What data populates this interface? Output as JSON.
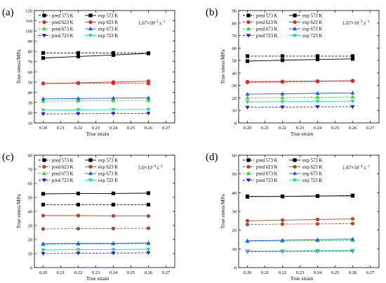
{
  "chart_data": [
    {
      "panel_label": "(a)",
      "type": "line",
      "rate_prefix": "1.67×10",
      "rate_exp": "−2",
      "rate_suffix": " s",
      "rate_suffix_exp": "−1",
      "xlabel": "True strain",
      "ylabel": "True stress/MPa",
      "xlim": [
        0.195,
        0.275
      ],
      "ylim": [
        10,
        120
      ],
      "xticks": [
        "0.20",
        "0.21",
        "0.22",
        "0.23",
        "0.24",
        "0.25",
        "0.26",
        "0.27"
      ],
      "yticks": [
        "10",
        "20",
        "30",
        "40",
        "50",
        "60",
        "70",
        "80",
        "90",
        "100",
        "110",
        "120"
      ],
      "x": [
        0.2,
        0.22,
        0.24,
        0.26
      ],
      "series": [
        {
          "name": "pred 573 K",
          "color": "#000000",
          "marker": "square",
          "dashed": true,
          "values": [
            78.5,
            78.5,
            78.5,
            78.2
          ]
        },
        {
          "name": "exp 573 K",
          "color": "#000000",
          "marker": "square",
          "dashed": false,
          "values": [
            73.5,
            75.0,
            76.5,
            78.0
          ]
        },
        {
          "name": "pred 623 K",
          "color": "#e8261e",
          "marker": "circle",
          "dashed": true,
          "values": [
            48.8,
            48.8,
            48.8,
            48.5
          ]
        },
        {
          "name": "exp 623 K",
          "color": "#e8261e",
          "marker": "circle",
          "dashed": false,
          "values": [
            48.5,
            49.2,
            50.0,
            50.8
          ]
        },
        {
          "name": "pred 673 K",
          "color": "#3ad432",
          "marker": "triangle-up",
          "dashed": true,
          "values": [
            31.2,
            31.5,
            31.8,
            32.0
          ]
        },
        {
          "name": "exp 673 K",
          "color": "#1f5ddf",
          "marker": "triangle-up",
          "dashed": false,
          "values": [
            33.5,
            33.8,
            34.2,
            34.5
          ]
        },
        {
          "name": "pred 723 K",
          "color": "#1f1fd8",
          "marker": "triangle-down",
          "dashed": true,
          "values": [
            18.8,
            19.0,
            19.2,
            19.3
          ]
        },
        {
          "name": "exp 723 K",
          "color": "#2fd39a",
          "marker": "triangle-down",
          "dashed": false,
          "values": [
            22.5,
            22.8,
            23.0,
            23.2
          ]
        }
      ]
    },
    {
      "panel_label": "(b)",
      "type": "line",
      "rate_prefix": "1.67×10",
      "rate_exp": "−3",
      "rate_suffix": " s",
      "rate_suffix_exp": "−1",
      "xlabel": "True strain",
      "ylabel": "True stress/MPa",
      "xlim": [
        0.195,
        0.275
      ],
      "ylim": [
        0,
        90
      ],
      "xticks": [
        "0.20",
        "0.21",
        "0.22",
        "0.23",
        "0.24",
        "0.25",
        "0.26",
        "0.27"
      ],
      "yticks": [
        "0",
        "10",
        "20",
        "30",
        "40",
        "50",
        "60",
        "70",
        "80",
        "90"
      ],
      "x": [
        0.2,
        0.22,
        0.24,
        0.26
      ],
      "series": [
        {
          "name": "pred 573 K",
          "color": "#000000",
          "marker": "square",
          "dashed": true,
          "values": [
            53.5,
            53.5,
            53.5,
            53.5
          ]
        },
        {
          "name": "exp 573 K",
          "color": "#000000",
          "marker": "square",
          "dashed": false,
          "values": [
            49.5,
            50.2,
            50.8,
            51.3
          ]
        },
        {
          "name": "pred 623 K",
          "color": "#e8261e",
          "marker": "circle",
          "dashed": true,
          "values": [
            32.5,
            32.8,
            33.2,
            33.5
          ]
        },
        {
          "name": "exp 623 K",
          "color": "#e8261e",
          "marker": "circle",
          "dashed": false,
          "values": [
            33.0,
            33.2,
            33.5,
            33.8
          ]
        },
        {
          "name": "pred 673 K",
          "color": "#3ad432",
          "marker": "triangle-up",
          "dashed": true,
          "values": [
            20.0,
            20.3,
            20.5,
            20.8
          ]
        },
        {
          "name": "exp 673 K",
          "color": "#1f5ddf",
          "marker": "triangle-up",
          "dashed": false,
          "values": [
            23.0,
            23.3,
            23.7,
            24.0
          ]
        },
        {
          "name": "pred 723 K",
          "color": "#1f1fd8",
          "marker": "triangle-down",
          "dashed": true,
          "values": [
            12.5,
            12.7,
            12.9,
            13.0
          ]
        },
        {
          "name": "exp 723 K",
          "color": "#2fd39a",
          "marker": "triangle-down",
          "dashed": false,
          "values": [
            16.8,
            17.0,
            17.2,
            17.4
          ]
        }
      ]
    },
    {
      "panel_label": "(c)",
      "type": "line",
      "rate_prefix": "5.0×10",
      "rate_exp": "−4",
      "rate_suffix": " s",
      "rate_suffix_exp": "−1",
      "xlabel": "True strain",
      "ylabel": "True stress/MPa",
      "xlim": [
        0.195,
        0.275
      ],
      "ylim": [
        0,
        80
      ],
      "xticks": [
        "0.20",
        "0.21",
        "0.22",
        "0.23",
        "0.24",
        "0.25",
        "0.26",
        "0.27"
      ],
      "yticks": [
        "0",
        "10",
        "20",
        "30",
        "40",
        "50",
        "60",
        "70",
        "80"
      ],
      "x": [
        0.2,
        0.22,
        0.24,
        0.26
      ],
      "series": [
        {
          "name": "pred 573 K",
          "color": "#000000",
          "marker": "square",
          "dashed": true,
          "values": [
            44.8,
            44.8,
            44.8,
            44.8
          ]
        },
        {
          "name": "exp 573 K",
          "color": "#000000",
          "marker": "square",
          "dashed": false,
          "values": [
            52.5,
            52.7,
            52.8,
            53.0
          ]
        },
        {
          "name": "pred 623 K",
          "color": "#b5452b",
          "marker": "circle",
          "dashed": true,
          "values": [
            27.5,
            27.7,
            27.8,
            28.0
          ]
        },
        {
          "name": "exp 623 K",
          "color": "#b5452b",
          "marker": "circle",
          "dashed": false,
          "values": [
            37.0,
            37.0,
            36.8,
            36.7
          ]
        },
        {
          "name": "pred 673 K",
          "color": "#3ad432",
          "marker": "triangle-up",
          "dashed": true,
          "values": [
            16.5,
            16.7,
            16.9,
            17.0
          ]
        },
        {
          "name": "exp 673 K",
          "color": "#1f5ddf",
          "marker": "triangle-up",
          "dashed": false,
          "values": [
            17.0,
            17.2,
            17.3,
            17.5
          ]
        },
        {
          "name": "pred 723 K",
          "color": "#1f1fd8",
          "marker": "triangle-down",
          "dashed": true,
          "values": [
            10.0,
            10.2,
            10.3,
            10.5
          ]
        },
        {
          "name": "exp 723 K",
          "color": "#2fd39a",
          "marker": "triangle-down",
          "dashed": false,
          "values": [
            12.5,
            12.7,
            12.8,
            13.0
          ]
        }
      ]
    },
    {
      "panel_label": "(d)",
      "type": "line",
      "rate_prefix": "1.67×10",
      "rate_exp": "−4",
      "rate_suffix": " s",
      "rate_suffix_exp": "−1",
      "xlabel": "True strain",
      "ylabel": "True stress/MPa",
      "xlim": [
        0.195,
        0.275
      ],
      "ylim": [
        0,
        60
      ],
      "xticks": [
        "0.20",
        "0.21",
        "0.22",
        "0.23",
        "0.24",
        "0.25",
        "0.26",
        "0.27"
      ],
      "yticks": [
        "0",
        "10",
        "20",
        "30",
        "40",
        "50",
        "60"
      ],
      "x": [
        0.2,
        0.22,
        0.24,
        0.26
      ],
      "series": [
        {
          "name": "pred 573 K",
          "color": "#000000",
          "marker": "square",
          "dashed": true,
          "values": [
            37.8,
            38.0,
            38.2,
            38.5
          ]
        },
        {
          "name": "exp 573 K",
          "color": "#000000",
          "marker": "square",
          "dashed": false,
          "values": [
            38.0,
            38.0,
            38.2,
            38.3
          ]
        },
        {
          "name": "pred 623 K",
          "color": "#b5452b",
          "marker": "circle",
          "dashed": true,
          "values": [
            23.0,
            23.2,
            23.3,
            23.5
          ]
        },
        {
          "name": "exp 623 K",
          "color": "#b5452b",
          "marker": "circle",
          "dashed": false,
          "values": [
            25.0,
            25.3,
            25.7,
            26.0
          ]
        },
        {
          "name": "pred 673 K",
          "color": "#3ad432",
          "marker": "triangle-up",
          "dashed": true,
          "values": [
            14.0,
            14.2,
            14.4,
            14.5
          ]
        },
        {
          "name": "exp 673 K",
          "color": "#1f5ddf",
          "marker": "triangle-up",
          "dashed": false,
          "values": [
            14.3,
            14.6,
            14.9,
            15.2
          ]
        },
        {
          "name": "pred 723 K",
          "color": "#1f1fd8",
          "marker": "triangle-down",
          "dashed": true,
          "values": [
            8.5,
            8.6,
            8.7,
            8.8
          ]
        },
        {
          "name": "exp 723 K",
          "color": "#2fd39a",
          "marker": "triangle-down",
          "dashed": false,
          "values": [
            8.8,
            8.9,
            9.0,
            9.1
          ]
        }
      ]
    }
  ]
}
